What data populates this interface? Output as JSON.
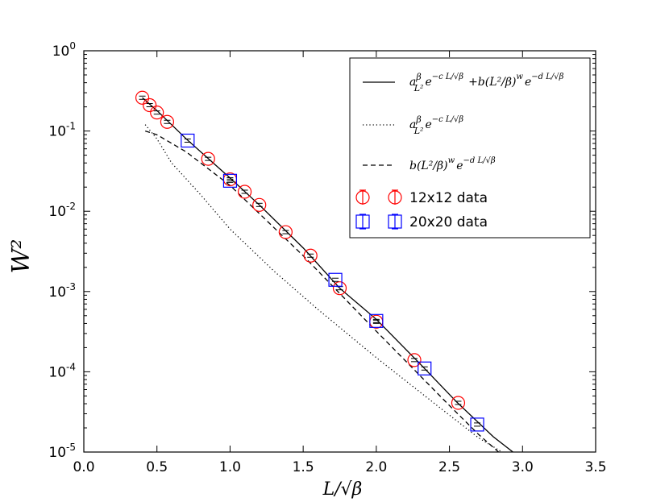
{
  "chart_data": {
    "type": "scatter",
    "xlabel": "L/√β",
    "ylabel": "W²",
    "xlim": [
      0.0,
      3.5
    ],
    "ylim": [
      1e-05,
      1
    ],
    "y_scale": "log",
    "x_ticks": [
      "0.0",
      "0.5",
      "1.0",
      "1.5",
      "2.0",
      "2.5",
      "3.0",
      "3.5"
    ],
    "y_ticks": [
      {
        "base": "10",
        "exp": "-5"
      },
      {
        "base": "10",
        "exp": "-4"
      },
      {
        "base": "10",
        "exp": "-3"
      },
      {
        "base": "10",
        "exp": "-2"
      },
      {
        "base": "10",
        "exp": "-1"
      },
      {
        "base": "10",
        "exp": "0"
      }
    ],
    "legend_position": "top-right",
    "lines": [
      {
        "legend": "aβ/L² e^(−c L/√β) + b(L²/β)^w e^(−d L/√β)",
        "style": "solid",
        "color": "#000000",
        "x": [
          0.4,
          0.5,
          0.7,
          1.0,
          1.2,
          1.5,
          1.75,
          2.0,
          2.3,
          2.55,
          2.8,
          2.95
        ],
        "y": [
          0.26,
          0.18,
          0.08,
          0.026,
          0.012,
          0.0035,
          0.0011,
          0.00045,
          0.000125,
          4.2e-05,
          1.55e-05,
          9.5e-06
        ]
      },
      {
        "legend": "aβ/L² e^(−c L/√β)",
        "style": "dotted",
        "color": "#000000",
        "x": [
          0.42,
          0.5,
          0.6,
          0.8,
          1.0,
          1.3,
          1.6,
          2.0,
          2.4,
          2.7,
          2.88
        ],
        "y": [
          0.12,
          0.08,
          0.04,
          0.016,
          0.006,
          0.0018,
          0.0006,
          0.00015,
          4e-05,
          1.5e-05,
          9.5e-06
        ]
      },
      {
        "legend": "b(L²/β)^w e^(−d L/√β)",
        "style": "dashed",
        "color": "#000000",
        "x": [
          0.42,
          0.5,
          0.7,
          1.0,
          1.5,
          2.0,
          2.5,
          2.7,
          2.85
        ],
        "y": [
          0.1,
          0.09,
          0.055,
          0.021,
          0.0028,
          0.00032,
          3.8e-05,
          1.65e-05,
          9.5e-06
        ]
      }
    ],
    "series": [
      {
        "name": "12x12 data",
        "marker": "circle",
        "color": "#ff0000",
        "x": [
          0.4,
          0.45,
          0.5,
          0.57,
          0.85,
          1.0,
          1.1,
          1.2,
          1.38,
          1.55,
          1.75,
          2.0,
          2.26,
          2.56
        ],
        "y": [
          0.26,
          0.21,
          0.17,
          0.13,
          0.045,
          0.025,
          0.0175,
          0.012,
          0.0055,
          0.0028,
          0.0011,
          0.00042,
          0.00014,
          4.1e-05
        ]
      },
      {
        "name": "20x20 data",
        "marker": "square",
        "color": "#0000ff",
        "x": [
          0.71,
          1.0,
          1.72,
          2.0,
          2.33,
          2.69
        ],
        "y": [
          0.076,
          0.024,
          0.0014,
          0.00043,
          0.00011,
          2.2e-05
        ]
      }
    ]
  }
}
